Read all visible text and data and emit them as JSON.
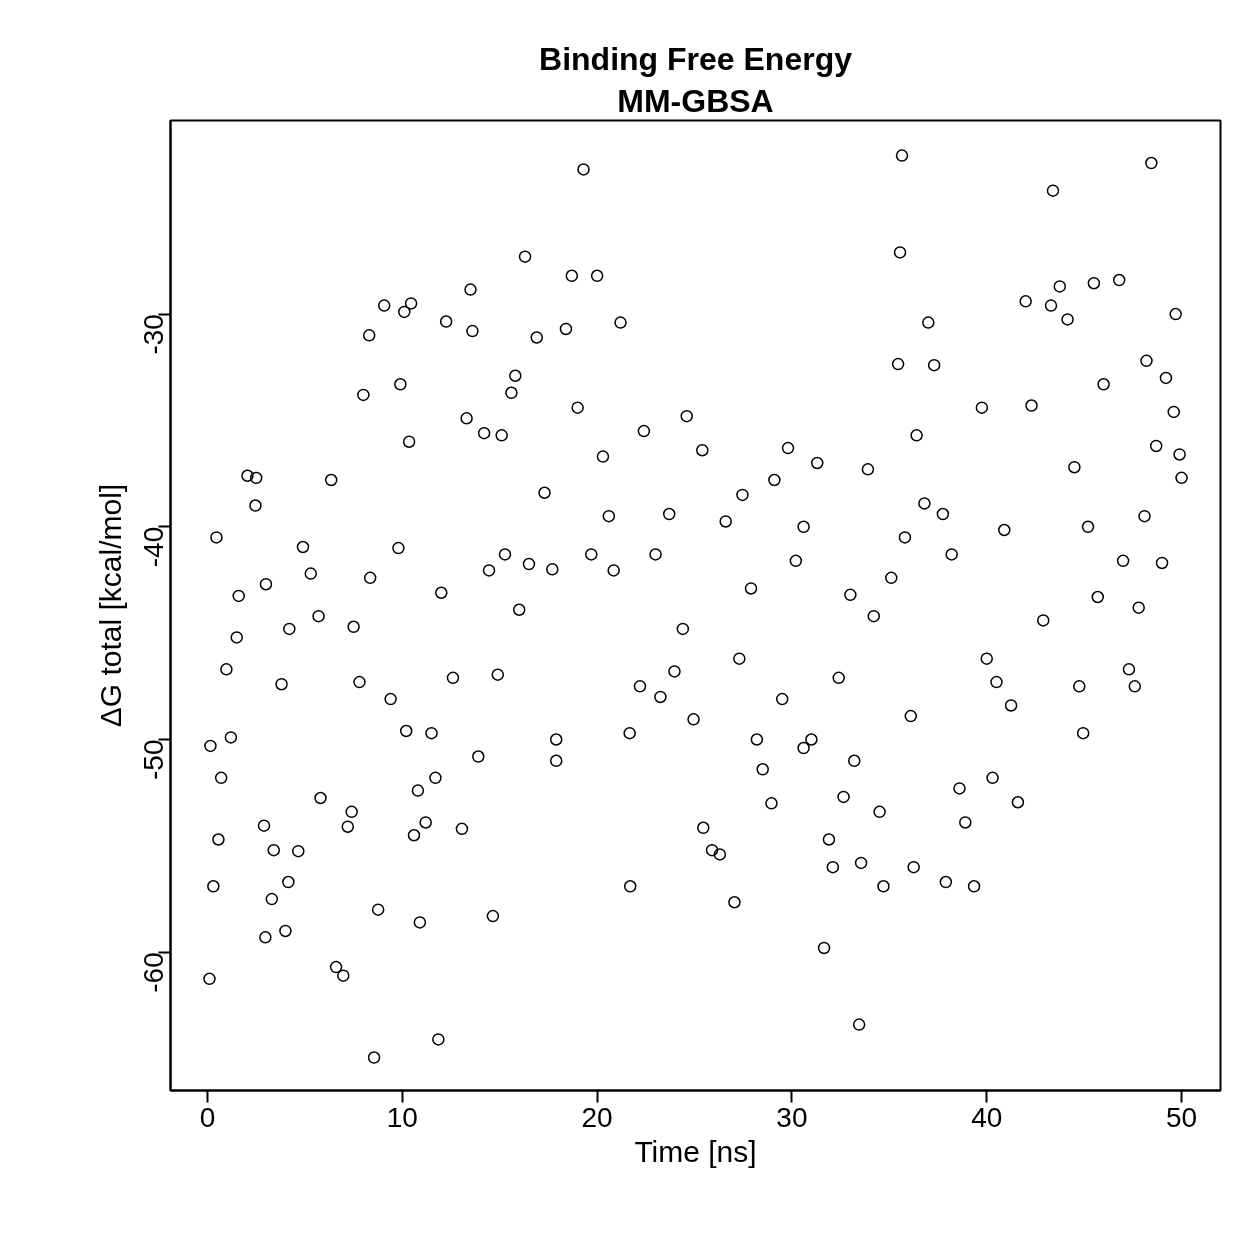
{
  "chart_data": {
    "type": "scatter",
    "title": "Binding Free Energy",
    "subtitle": "MM-GBSA",
    "xlabel": "Time [ns]",
    "ylabel": "ΔG total [kcal/mol]",
    "xlim": [
      -1.9,
      52.0
    ],
    "ylim": [
      -66.5,
      -20.9
    ],
    "xticks": [
      0,
      10,
      20,
      30,
      40,
      50
    ],
    "yticks": [
      -30,
      -40,
      -50,
      -60
    ],
    "grid": false,
    "marker": "circle",
    "series": [
      {
        "color": "#000000",
        "x": [
          0.1,
          0.15,
          0.46,
          0.3,
          0.56,
          0.7,
          0.97,
          1.2,
          1.6,
          1.5,
          2.05,
          2.5,
          2.46,
          2.9,
          2.97,
          3.0,
          3.3,
          3.4,
          3.8,
          4.0,
          4.15,
          4.2,
          4.66,
          8.55,
          4.9,
          5.3,
          5.7,
          5.8,
          6.35,
          6.6,
          6.97,
          7.2,
          7.4,
          7.5,
          7.8,
          8.0,
          8.3,
          8.35,
          8.76,
          9.07,
          9.4,
          9.8,
          9.9,
          10.1,
          10.45,
          10.35,
          10.2,
          10.6,
          10.8,
          10.9,
          11.2,
          11.5,
          11.7,
          11.85,
          12.0,
          12.25,
          12.6,
          13.06,
          13.3,
          13.5,
          13.6,
          13.9,
          14.2,
          14.45,
          14.65,
          14.9,
          15.1,
          15.27,
          15.6,
          15.8,
          16.0,
          16.3,
          16.5,
          16.9,
          17.3,
          17.7,
          17.9,
          17.9,
          18.4,
          18.7,
          19.0,
          19.3,
          19.7,
          20.0,
          20.3,
          20.6,
          20.85,
          21.2,
          21.7,
          21.67,
          22.2,
          22.4,
          23.0,
          23.25,
          23.7,
          23.97,
          24.4,
          24.6,
          24.95,
          25.4,
          25.45,
          25.9,
          26.3,
          26.6,
          27.05,
          27.3,
          27.46,
          27.9,
          28.2,
          28.5,
          28.95,
          29.1,
          29.5,
          29.8,
          30.2,
          30.6,
          30.6,
          31.0,
          31.3,
          31.65,
          31.9,
          32.1,
          32.4,
          32.65,
          33.0,
          33.2,
          33.45,
          33.55,
          33.9,
          34.2,
          34.5,
          34.7,
          35.1,
          35.45,
          35.55,
          35.65,
          35.8,
          36.1,
          36.25,
          36.4,
          36.8,
          37.0,
          37.3,
          37.75,
          37.9,
          38.2,
          38.6,
          38.9,
          39.35,
          39.75,
          40.0,
          40.3,
          40.5,
          40.9,
          41.25,
          41.6,
          42.0,
          42.3,
          42.9,
          43.3,
          43.4,
          43.75,
          44.15,
          44.5,
          44.75,
          44.95,
          45.2,
          45.5,
          45.7,
          46.0,
          46.8,
          47.0,
          47.3,
          47.6,
          47.8,
          48.1,
          48.2,
          48.45,
          48.7,
          49.0,
          49.2,
          49.6,
          49.7,
          49.9,
          50.0
        ],
        "values": [
          -61.25,
          -50.3,
          -40.5,
          -56.9,
          -54.7,
          -51.8,
          -46.7,
          -49.9,
          -43.25,
          -45.2,
          -37.6,
          -37.7,
          -39.0,
          -54.05,
          -59.3,
          -42.7,
          -57.5,
          -55.2,
          -47.4,
          -59.0,
          -56.7,
          -44.8,
          -55.25,
          -64.95,
          -40.95,
          -42.2,
          -44.2,
          -52.75,
          -37.8,
          -60.7,
          -61.1,
          -54.1,
          -53.4,
          -44.7,
          -47.3,
          -33.8,
          -31.0,
          -42.4,
          -58.0,
          -29.6,
          -48.1,
          -41.0,
          -33.3,
          -29.9,
          -29.5,
          -36.0,
          -49.6,
          -54.5,
          -52.4,
          -58.6,
          -53.9,
          -49.7,
          -51.8,
          -64.1,
          -43.1,
          -30.35,
          -47.1,
          -54.2,
          -34.9,
          -28.85,
          -30.8,
          -50.8,
          -35.6,
          -42.05,
          -58.3,
          -46.95,
          -35.7,
          -41.3,
          -33.7,
          -32.9,
          -43.9,
          -27.3,
          -41.75,
          -31.1,
          -38.4,
          -42.0,
          -50.0,
          -51.0,
          -30.7,
          -28.2,
          -34.4,
          -23.2,
          -41.3,
          -28.2,
          -36.7,
          -39.5,
          -42.05,
          -30.4,
          -56.9,
          -49.7,
          -47.5,
          -35.5,
          -41.3,
          -48.0,
          -39.4,
          -46.8,
          -44.8,
          -34.8,
          -49.05,
          -36.4,
          -54.15,
          -55.2,
          -55.4,
          -39.75,
          -57.65,
          -46.2,
          -38.5,
          -42.9,
          -50.0,
          -51.4,
          -53.0,
          -37.8,
          -48.1,
          -36.3,
          -41.6,
          -50.4,
          -40.0,
          -50.0,
          -37.0,
          -59.8,
          -54.7,
          -56.0,
          -47.1,
          -52.7,
          -43.2,
          -51.0,
          -63.4,
          -55.8,
          -37.3,
          -44.2,
          -53.4,
          -56.9,
          -42.4,
          -32.35,
          -27.1,
          -22.55,
          -40.5,
          -48.9,
          -56.0,
          -35.7,
          -38.9,
          -30.4,
          -32.4,
          -39.4,
          -56.7,
          -41.3,
          -52.3,
          -53.9,
          -56.9,
          -34.4,
          -46.2,
          -51.8,
          -47.3,
          -40.15,
          -48.4,
          -52.95,
          -29.4,
          -34.3,
          -44.4,
          -29.6,
          -24.2,
          -28.7,
          -30.25,
          -37.2,
          -47.5,
          -49.7,
          -40.0,
          -28.55,
          -43.3,
          -33.3,
          -28.4,
          -41.6,
          -46.7,
          -47.5,
          -43.8,
          -39.5,
          -32.2,
          -22.9,
          -36.2,
          -41.7,
          -33.0,
          -34.6,
          -30.0,
          -36.6,
          -37.7
        ]
      }
    ]
  }
}
